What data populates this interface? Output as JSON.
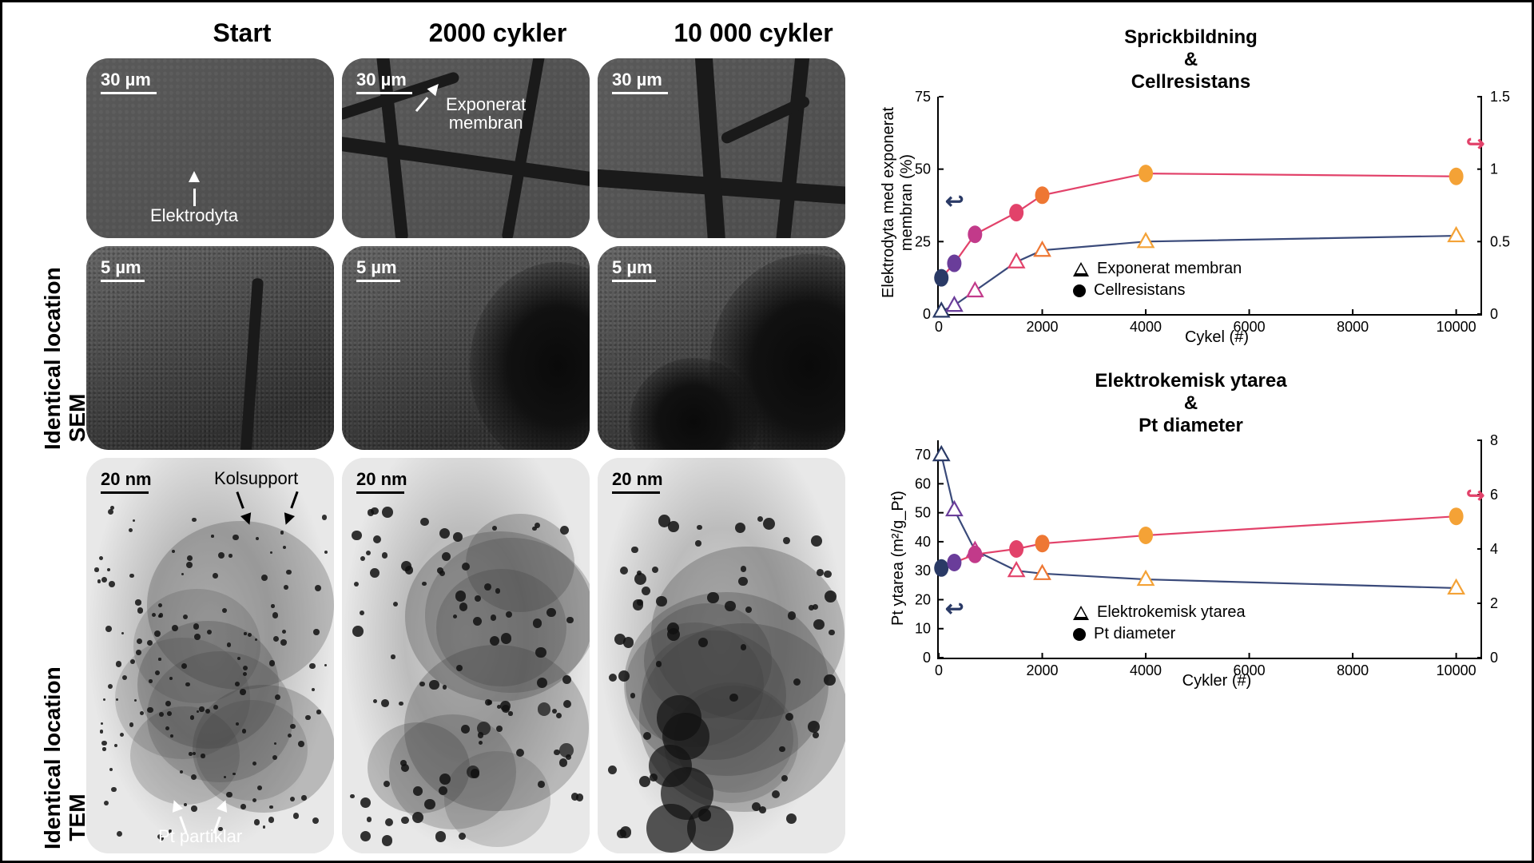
{
  "columns": [
    "Start",
    "2000 cykler",
    "10 000 cykler"
  ],
  "rows": {
    "sem": {
      "line1": "Identical location",
      "line2": "SEM"
    },
    "tem": {
      "line1": "Identical location",
      "line2": "TEM"
    }
  },
  "scalebars": {
    "um30": "30 µm",
    "um5": "5 µm",
    "nm20": "20 nm"
  },
  "annotations": {
    "elektrodyta": "Elektrodyta",
    "exponerat_membran_l1": "Exponerat",
    "exponerat_membran_l2": "membran",
    "kolsupport": "Kolsupport",
    "pt_partiklar": "Pt partiklar"
  },
  "tem_particles": {
    "start": {
      "count": 140,
      "size_min": 3,
      "size_max": 8,
      "big_count": 0,
      "big_size": 0
    },
    "c2000": {
      "count": 90,
      "size_min": 5,
      "size_max": 14,
      "big_count": 4,
      "big_size": 22
    },
    "c10000": {
      "count": 60,
      "size_min": 6,
      "size_max": 16,
      "big_count": 6,
      "big_size": 55
    }
  },
  "palette": {
    "triangle_colors": [
      "#2a3a66",
      "#6a3d9a",
      "#c23a8a",
      "#e2426a",
      "#ee7733",
      "#f4a236"
    ],
    "dot_colors": [
      "#2a3a66",
      "#6a3d9a",
      "#c23a8a",
      "#e2426a",
      "#ee7733",
      "#f4a236"
    ],
    "line_tri": "#3a4a7a",
    "line_dot": "#e2426a",
    "tick_fontsize": 18
  },
  "chart1": {
    "title_l1": "Sprickbildning",
    "title_l2": "&",
    "title_l3": "Cellresistans",
    "ylabel_left_l1": "Elektrodyta med exponerat",
    "ylabel_left_l2": "membran (%)",
    "xlabel": "Cykel (#)",
    "legend": [
      "Exponerat membran",
      "Cellresistans"
    ],
    "xlim": [
      0,
      10500
    ],
    "xtick_step": 2000,
    "ylim_left": [
      0,
      75
    ],
    "ytick_left": [
      0,
      25,
      50,
      75
    ],
    "ylim_right": [
      0,
      1.5
    ],
    "ytick_right": [
      0.0,
      0.5,
      1.0,
      1.5
    ],
    "series_tri": {
      "x": [
        50,
        300,
        700,
        1500,
        2000,
        4000,
        10000
      ],
      "y": [
        1,
        3,
        8,
        18,
        22,
        25,
        27
      ]
    },
    "series_dot": {
      "x": [
        50,
        300,
        700,
        1500,
        2000,
        4000,
        10000
      ],
      "y": [
        0.25,
        0.35,
        0.55,
        0.7,
        0.82,
        0.97,
        0.95
      ]
    }
  },
  "chart2": {
    "title_l1": "Elektrokemisk ytarea",
    "title_l2": "&",
    "title_l3": "Pt diameter",
    "ylabel_left": "Pt ytarea (m²/g_Pt)",
    "xlabel": "Cykler (#)",
    "legend": [
      "Elektrokemisk ytarea",
      "Pt diameter"
    ],
    "xlim": [
      0,
      10500
    ],
    "xtick_step": 2000,
    "ylim_left": [
      0,
      75
    ],
    "ytick_left": [
      0,
      10,
      20,
      30,
      40,
      50,
      60,
      70
    ],
    "ylim_right": [
      0,
      8
    ],
    "ytick_right": [
      0,
      2,
      4,
      6,
      8
    ],
    "series_tri": {
      "x": [
        50,
        300,
        700,
        1500,
        2000,
        4000,
        10000
      ],
      "y": [
        70,
        51,
        37,
        30,
        29,
        27,
        24
      ]
    },
    "series_dot": {
      "x": [
        50,
        300,
        700,
        1500,
        2000,
        4000,
        10000
      ],
      "y": [
        3.3,
        3.5,
        3.8,
        4.0,
        4.2,
        4.5,
        5.2
      ]
    }
  }
}
